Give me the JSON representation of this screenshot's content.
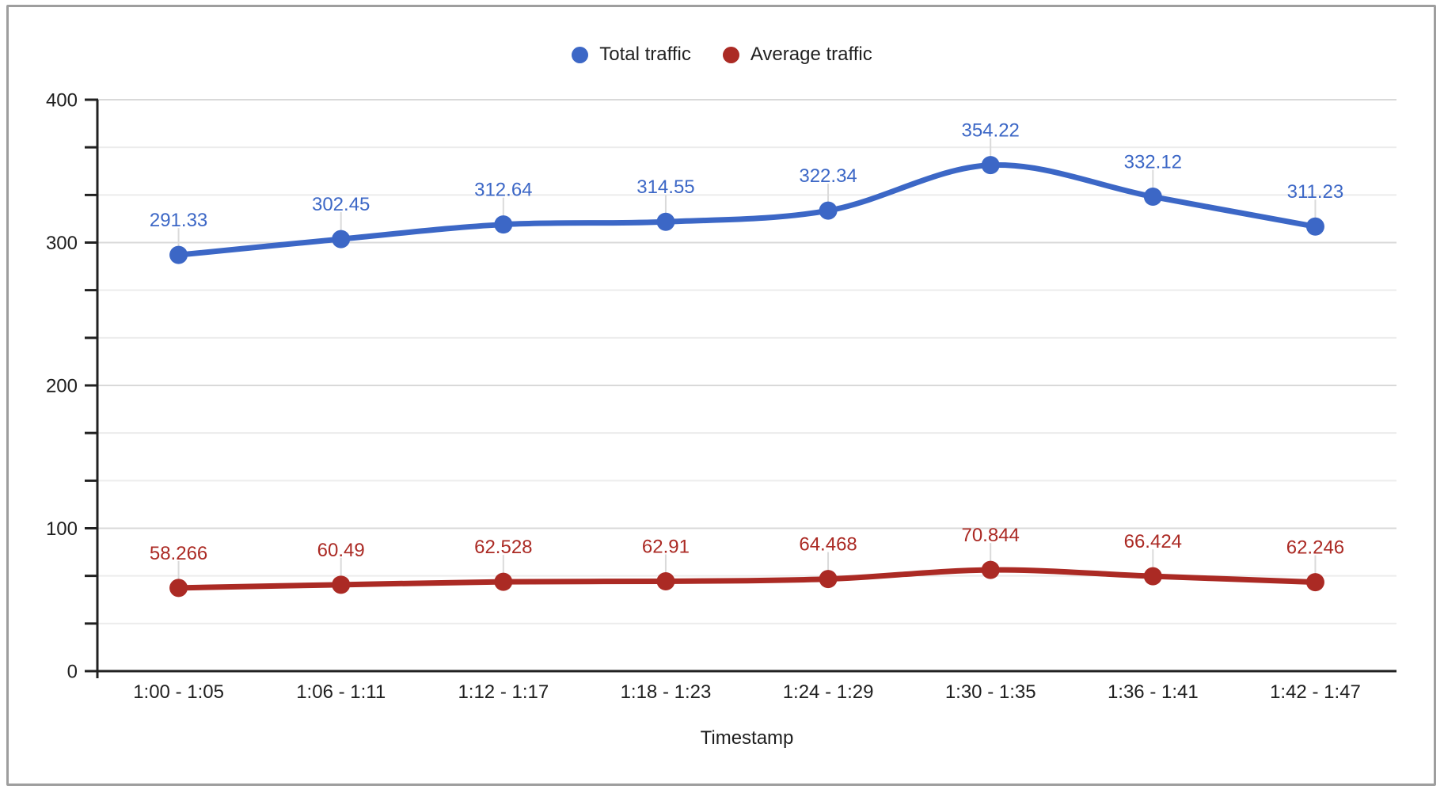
{
  "legend": {
    "items": [
      {
        "label": "Total traffic",
        "color": "#3C67C6"
      },
      {
        "label": "Average traffic",
        "color": "#AB2A24"
      }
    ]
  },
  "chart_data": {
    "type": "line",
    "title": "",
    "xlabel": "Timestamp",
    "ylabel": "",
    "categories": [
      "1:00 - 1:05",
      "1:06 - 1:11",
      "1:12 - 1:17",
      "1:18 - 1:23",
      "1:24 - 1:29",
      "1:30 - 1:35",
      "1:36 - 1:41",
      "1:42 - 1:47"
    ],
    "series": [
      {
        "name": "Total traffic",
        "color": "#3C67C6",
        "values": [
          291.33,
          302.45,
          312.64,
          314.55,
          322.34,
          354.22,
          332.12,
          311.23
        ],
        "labels": [
          "291.33",
          "302.45",
          "312.64",
          "314.55",
          "322.34",
          "354.22",
          "332.12",
          "311.23"
        ]
      },
      {
        "name": "Average traffic",
        "color": "#AB2A24",
        "values": [
          58.266,
          60.49,
          62.528,
          62.91,
          64.468,
          70.844,
          66.424,
          62.246
        ],
        "labels": [
          "58.266",
          "60.49",
          "62.528",
          "62.91",
          "64.468",
          "70.844",
          "66.424",
          "62.246"
        ]
      }
    ],
    "ylim": [
      0,
      400
    ],
    "y_major_ticks": [
      0,
      100,
      200,
      300,
      400
    ],
    "y_tick_labels": [
      "0",
      "100",
      "200",
      "300",
      "400"
    ],
    "minor_gridlines_between_majors": 2,
    "grid": true,
    "smooth": true,
    "legend_position": "top"
  },
  "styles": {
    "axis_color": "#212121",
    "major_grid_color": "#d9d9d9",
    "minor_grid_color": "#ececec",
    "leader_line_color": "#dadada",
    "tick_label_color": "#1f1f1f",
    "frame_border_color": "#9e9e9e"
  }
}
